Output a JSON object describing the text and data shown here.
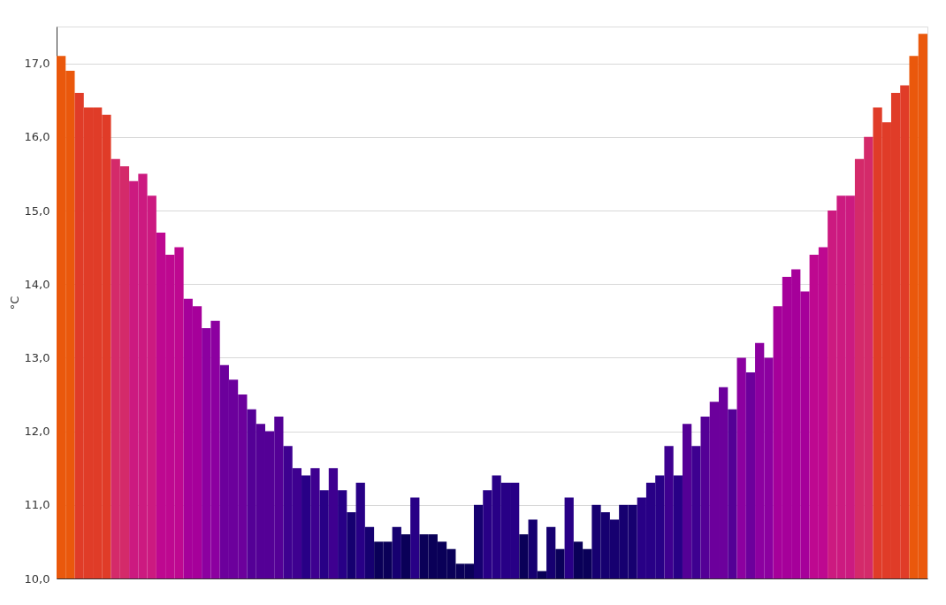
{
  "chart_data": {
    "type": "bar",
    "ylabel": "°C",
    "categories": [
      null,
      null,
      null,
      null,
      null,
      null,
      null,
      null,
      null,
      null,
      null,
      null,
      null,
      null,
      null,
      null,
      null,
      null,
      null,
      null,
      null,
      null,
      null,
      null,
      null,
      null,
      null,
      null,
      null,
      null,
      null,
      null,
      null,
      null,
      null,
      null,
      null,
      null,
      null,
      null,
      null,
      null,
      null,
      null,
      null,
      null,
      null,
      null,
      null,
      null,
      null,
      null,
      null,
      null,
      null,
      null,
      null,
      null,
      null,
      null,
      null,
      null,
      null,
      null,
      null,
      null,
      null,
      null,
      null,
      null,
      null,
      null,
      null,
      null,
      null,
      null,
      null,
      null,
      null,
      null,
      null,
      null,
      null,
      null,
      null,
      null,
      null,
      null,
      null,
      null,
      null,
      null,
      null,
      null,
      null,
      null
    ],
    "values": [
      17.1,
      16.9,
      16.6,
      16.4,
      16.4,
      16.3,
      15.7,
      15.6,
      15.4,
      15.5,
      15.2,
      14.7,
      14.4,
      14.5,
      13.8,
      13.7,
      13.4,
      13.5,
      12.9,
      12.7,
      12.5,
      12.3,
      12.1,
      12.0,
      12.2,
      11.8,
      11.5,
      11.4,
      11.5,
      11.2,
      11.5,
      11.2,
      10.9,
      11.3,
      10.7,
      10.5,
      10.5,
      10.7,
      10.6,
      11.1,
      10.6,
      10.6,
      10.5,
      10.4,
      10.2,
      10.2,
      11.0,
      11.2,
      11.4,
      11.3,
      11.3,
      10.6,
      10.8,
      10.1,
      10.7,
      10.4,
      11.1,
      10.5,
      10.4,
      11.0,
      10.9,
      10.8,
      11.0,
      11.0,
      11.1,
      11.3,
      11.4,
      11.8,
      11.4,
      12.1,
      11.8,
      12.2,
      12.4,
      12.6,
      12.3,
      13.0,
      12.8,
      13.2,
      13.0,
      13.7,
      14.1,
      14.2,
      13.9,
      14.4,
      14.5,
      15.0,
      15.2,
      15.2,
      15.7,
      16.0,
      16.4,
      16.2,
      16.6,
      16.7,
      17.1,
      17.4
    ],
    "colors": [
      "#ea580c",
      "#ea580c",
      "#e03c28",
      "#e03c28",
      "#e03c28",
      "#e03c28",
      "#d42a6a",
      "#d42a6a",
      "#cc1a80",
      "#cc1a80",
      "#cc1a80",
      "#be0890",
      "#be0890",
      "#be0890",
      "#a6009a",
      "#a6009a",
      "#8c00a0",
      "#8c00a0",
      "#6c009c",
      "#6c009c",
      "#6c009c",
      "#540096",
      "#540096",
      "#540096",
      "#540096",
      "#3e0090",
      "#3e0090",
      "#280086",
      "#3e0090",
      "#280086",
      "#3e0090",
      "#280086",
      "#160070",
      "#280086",
      "#160070",
      "#0a0058",
      "#0a0058",
      "#160070",
      "#0a0058",
      "#280086",
      "#0a0058",
      "#0a0058",
      "#0a0058",
      "#0a0058",
      "#0a0058",
      "#0a0058",
      "#160070",
      "#280086",
      "#280086",
      "#280086",
      "#280086",
      "#0a0058",
      "#160070",
      "#0a0058",
      "#160070",
      "#0a0058",
      "#280086",
      "#0a0058",
      "#0a0058",
      "#160070",
      "#160070",
      "#160070",
      "#160070",
      "#160070",
      "#280086",
      "#280086",
      "#280086",
      "#3e0090",
      "#280086",
      "#540096",
      "#3e0090",
      "#540096",
      "#6c009c",
      "#6c009c",
      "#540096",
      "#8c00a0",
      "#6c009c",
      "#8c00a0",
      "#8c00a0",
      "#a6009a",
      "#a6009a",
      "#a6009a",
      "#a6009a",
      "#be0890",
      "#be0890",
      "#cc1a80",
      "#cc1a80",
      "#cc1a80",
      "#d42a6a",
      "#d42a6a",
      "#e03c28",
      "#e03c28",
      "#e03c28",
      "#e03c28",
      "#ea580c",
      "#ea580c"
    ],
    "ylim": [
      10,
      17.5
    ],
    "yticks": [
      {
        "value": 10,
        "label": "10,0"
      },
      {
        "value": 11,
        "label": "11,0"
      },
      {
        "value": 12,
        "label": "12,0"
      },
      {
        "value": 13,
        "label": "13,0"
      },
      {
        "value": 14,
        "label": "14,0"
      },
      {
        "value": 15,
        "label": "15,0"
      },
      {
        "value": 16,
        "label": "16,0"
      },
      {
        "value": 17,
        "label": "17,0"
      }
    ],
    "grid": "y"
  }
}
